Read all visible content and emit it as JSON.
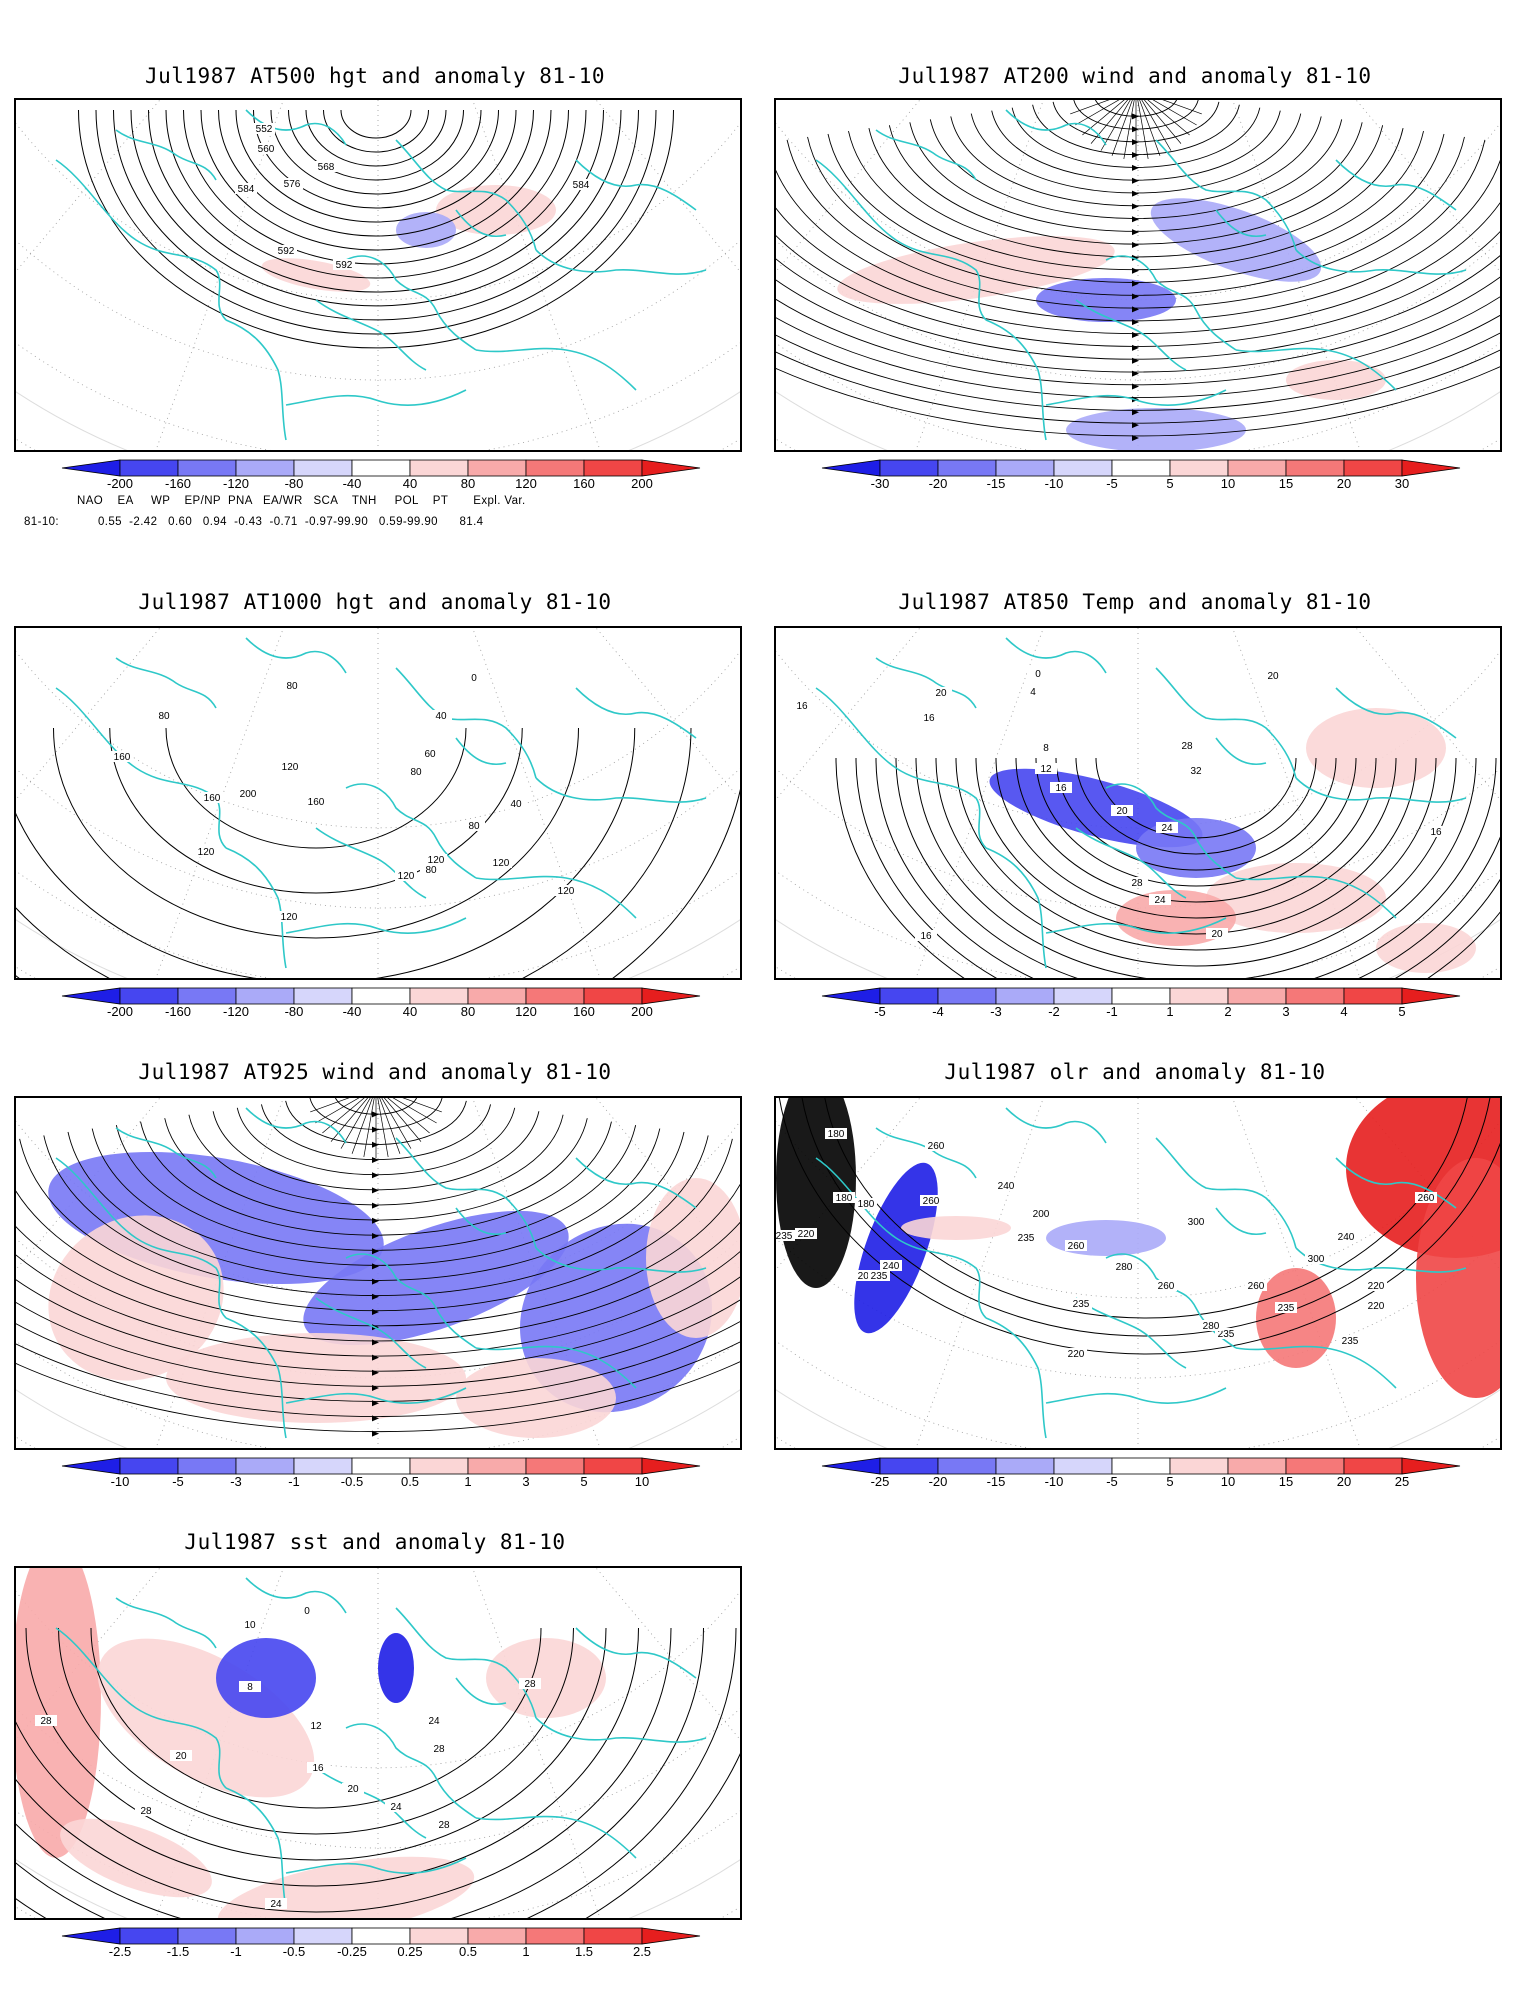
{
  "colors": {
    "coastline": "#2ec8c8",
    "contour": "#000000",
    "neg": [
      "#1e1ee6",
      "#4646f0",
      "#7878f5",
      "#aaaaf8",
      "#d6d6fb"
    ],
    "pos": [
      "#fbd6d6",
      "#f8aaaa",
      "#f57878",
      "#f04646",
      "#e61e1e"
    ]
  },
  "panels": [
    {
      "id": "z500",
      "title": "Jul1987 AT500 hgt and anomaly 81-10",
      "ticks": [
        "-200",
        "-160",
        "-120",
        "-80",
        "-40",
        "40",
        "80",
        "120",
        "160",
        "200"
      ],
      "contour_labels": [
        "552",
        "560",
        "568",
        "576",
        "584",
        "584",
        "592",
        "592"
      ],
      "extra": {
        "header": "NAO    EA     WP    EP/NP  PNA   EA/WR   SCA    TNH     POL    PT       Expl. Var.",
        "row_label": "81-10:",
        "values": "0.55  -2.42   0.60   0.94  -0.43  -0.71  -0.97-99.90   0.59-99.90      81.4"
      }
    },
    {
      "id": "w200",
      "title": "Jul1987 AT200 wind and anomaly 81-10",
      "ticks": [
        "-30",
        "-20",
        "-15",
        "-10",
        "-5",
        "5",
        "10",
        "15",
        "20",
        "30"
      ],
      "contour_labels": []
    },
    {
      "id": "z1000",
      "title": "Jul1987 AT1000 hgt and anomaly 81-10",
      "ticks": [
        "-200",
        "-160",
        "-120",
        "-80",
        "-40",
        "40",
        "80",
        "120",
        "160",
        "200"
      ],
      "contour_labels": [
        "160",
        "120",
        "80",
        "80",
        "200",
        "160",
        "160",
        "120",
        "120",
        "80",
        "80",
        "40",
        "120",
        "120",
        "120",
        "60",
        "80",
        "40",
        "0",
        "120"
      ]
    },
    {
      "id": "t850",
      "title": "Jul1987 AT850 Temp and anomaly 81-10",
      "ticks": [
        "-5",
        "-4",
        "-3",
        "-2",
        "-1",
        "1",
        "2",
        "3",
        "4",
        "5"
      ],
      "contour_labels": [
        "16",
        "16",
        "20",
        "4",
        "8",
        "12",
        "16",
        "20",
        "24",
        "28",
        "24",
        "20",
        "32",
        "28",
        "16",
        "20",
        "0",
        "16"
      ]
    },
    {
      "id": "w925",
      "title": "Jul1987 AT925 wind and anomaly 81-10",
      "ticks": [
        "-10",
        "-5",
        "-3",
        "-1",
        "-0.5",
        "0.5",
        "1",
        "3",
        "5",
        "10"
      ],
      "contour_labels": []
    },
    {
      "id": "olr",
      "title": "Jul1987 olr and anomaly 81-10",
      "ticks": [
        "-25",
        "-20",
        "-15",
        "-10",
        "-5",
        "5",
        "10",
        "15",
        "20",
        "25"
      ],
      "contour_labels": [
        "180",
        "180",
        "180",
        "260",
        "235",
        "220",
        "200",
        "240",
        "235",
        "260",
        "240",
        "200",
        "235",
        "260",
        "280",
        "300",
        "260",
        "235",
        "220",
        "260",
        "235",
        "300",
        "280",
        "235",
        "240",
        "220",
        "235",
        "220",
        "260"
      ]
    },
    {
      "id": "sst",
      "title": "Jul1987 sst and anomaly 81-10",
      "ticks": [
        "-2.5",
        "-1.5",
        "-1",
        "-0.5",
        "-0.25",
        "0.25",
        "0.5",
        "1",
        "1.5",
        "2.5"
      ],
      "contour_labels": [
        "28",
        "28",
        "20",
        "8",
        "12",
        "16",
        "20",
        "24",
        "28",
        "28",
        "24",
        "24",
        "28",
        "10",
        "0"
      ]
    }
  ]
}
